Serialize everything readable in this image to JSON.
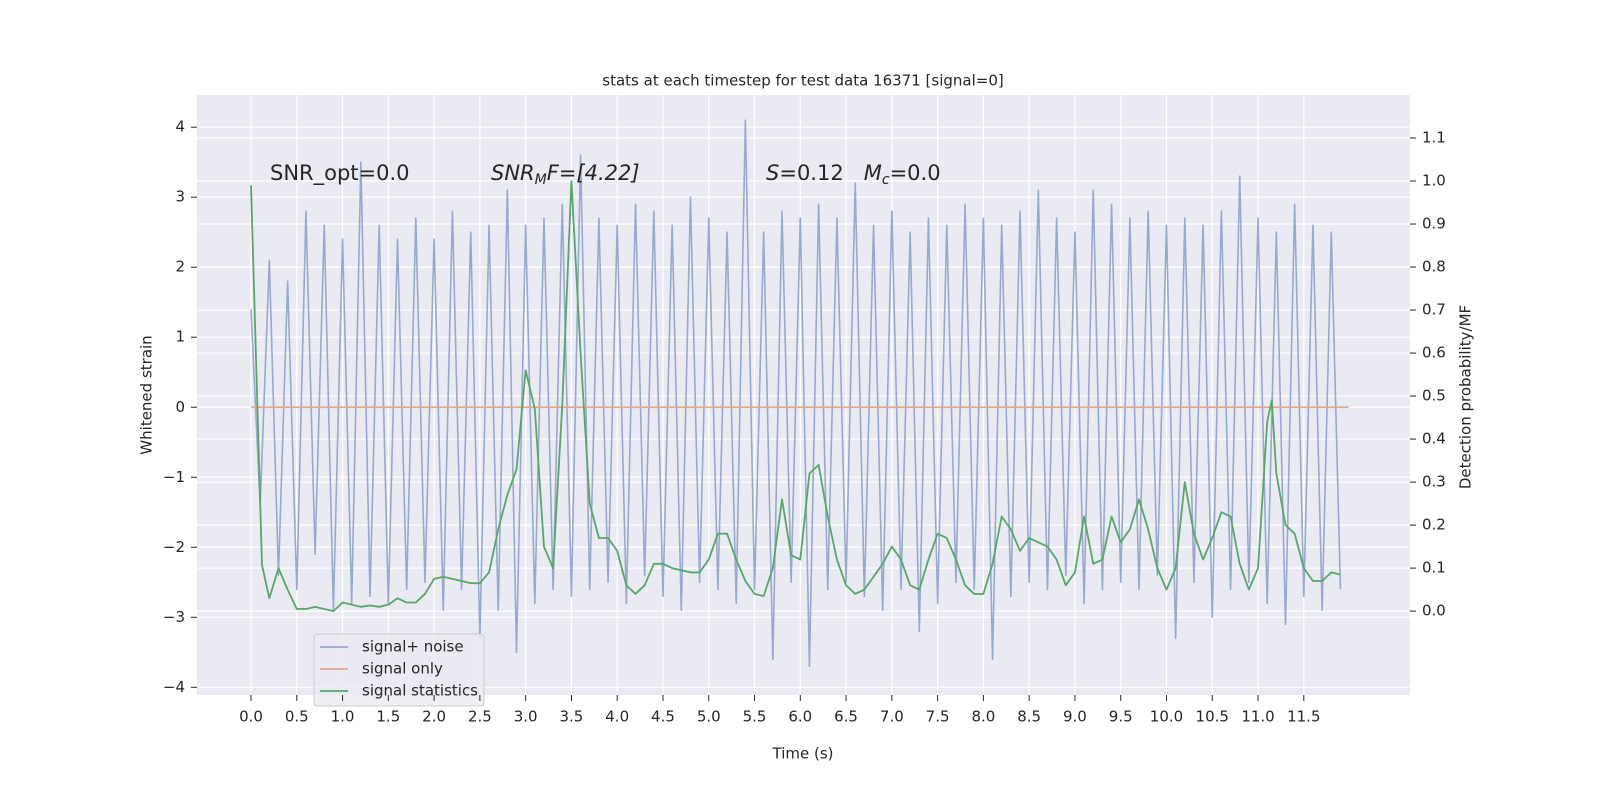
{
  "chart_data": {
    "type": "line",
    "title": "stats at each timestep for test data 16371 [signal=0]",
    "xlabel": "Time (s)",
    "ylabel": "Whitened strain",
    "y2label": "Detection probability/MF",
    "xlim": [
      -0.59,
      12.66
    ],
    "ylim": [
      -4.11,
      4.46
    ],
    "y2lim": [
      -0.195,
      1.2
    ],
    "xticks": [
      {
        "value": 0,
        "label": "0.0"
      },
      0.5,
      {
        "value": 1,
        "label": "1.0"
      },
      1.5,
      {
        "value": 2,
        "label": "2.0"
      },
      2.5,
      {
        "value": 3,
        "label": "3.0"
      },
      3.5,
      {
        "value": 4,
        "label": "4.0"
      },
      4.5,
      {
        "value": 5,
        "label": "5.0"
      },
      5.5,
      {
        "value": 6,
        "label": "6.0"
      },
      6.5,
      {
        "value": 7,
        "label": "7.0"
      },
      7.5,
      {
        "value": 8,
        "label": "8.0"
      },
      8.5,
      {
        "value": 9,
        "label": "9.0"
      },
      9.5,
      {
        "value": 10,
        "label": "10.0"
      },
      10.5,
      {
        "value": 11,
        "label": "11.0"
      },
      11.5
    ],
    "yticks": [
      {
        "value": -4,
        "label": "−4"
      },
      {
        "value": -3,
        "label": "−3"
      },
      {
        "value": -2,
        "label": "−2"
      },
      {
        "value": -1,
        "label": "−1"
      },
      0,
      1,
      2,
      3,
      4
    ],
    "y2ticks": [
      {
        "value": 0,
        "label": "0.0"
      },
      0.1,
      0.2,
      0.3,
      0.4,
      0.5,
      0.6,
      0.7,
      0.8,
      0.9,
      {
        "value": 1,
        "label": "1.0"
      },
      1.1
    ],
    "grid": true,
    "legend": "lower left",
    "annotations": [
      {
        "parts": [
          "SNR_opt=0.0"
        ]
      },
      {
        "parts": [
          "SNR",
          "M",
          "F=[4.22]"
        ]
      },
      {
        "parts": [
          "S",
          "=0.12   ",
          "M",
          "c",
          "=0.0"
        ]
      }
    ],
    "series": [
      {
        "name": "signal+ noise",
        "color": "#98a8cf",
        "x": [
          0.0,
          0.1,
          0.2,
          0.3,
          0.4,
          0.5,
          0.6,
          0.7,
          0.8,
          0.9,
          1.0,
          1.1,
          1.2,
          1.3,
          1.4,
          1.5,
          1.6,
          1.7,
          1.8,
          1.9,
          2.0,
          2.1,
          2.2,
          2.3,
          2.4,
          2.5,
          2.6,
          2.7,
          2.8,
          2.9,
          3.0,
          3.1,
          3.2,
          3.3,
          3.4,
          3.5,
          3.6,
          3.7,
          3.8,
          3.9,
          4.0,
          4.1,
          4.2,
          4.3,
          4.4,
          4.5,
          4.6,
          4.7,
          4.8,
          4.9,
          5.0,
          5.1,
          5.2,
          5.3,
          5.4,
          5.5,
          5.6,
          5.7,
          5.8,
          5.9,
          6.0,
          6.1,
          6.2,
          6.3,
          6.4,
          6.5,
          6.6,
          6.7,
          6.8,
          6.9,
          7.0,
          7.1,
          7.2,
          7.3,
          7.4,
          7.5,
          7.6,
          7.7,
          7.8,
          7.9,
          8.0,
          8.1,
          8.2,
          8.3,
          8.4,
          8.5,
          8.6,
          8.7,
          8.8,
          8.9,
          9.0,
          9.1,
          9.2,
          9.3,
          9.4,
          9.5,
          9.6,
          9.7,
          9.8,
          9.9,
          10.0,
          10.1,
          10.2,
          10.3,
          10.4,
          10.5,
          10.6,
          10.7,
          10.8,
          10.9,
          11.0,
          11.1,
          11.2,
          11.3,
          11.4,
          11.5,
          11.6,
          11.7,
          11.8,
          11.9
        ],
        "values": [
          1.4,
          -1.4,
          2.1,
          -2.4,
          1.8,
          -2.6,
          2.8,
          -2.1,
          2.6,
          -2.9,
          2.4,
          -2.8,
          3.5,
          -2.7,
          2.6,
          -2.8,
          2.4,
          -2.6,
          2.7,
          -2.5,
          2.4,
          -2.9,
          2.8,
          -2.6,
          2.5,
          -3.3,
          2.6,
          -2.9,
          3.1,
          -3.5,
          2.6,
          -2.8,
          2.7,
          -2.6,
          2.9,
          -2.7,
          3.6,
          -2.6,
          2.7,
          -2.5,
          2.6,
          -2.8,
          2.9,
          -2.4,
          2.8,
          -2.7,
          2.6,
          -2.9,
          3.0,
          -2.5,
          2.7,
          -2.6,
          2.5,
          -2.8,
          4.1,
          -2.6,
          2.5,
          -3.6,
          2.8,
          -2.5,
          2.7,
          -3.7,
          2.9,
          -2.6,
          2.7,
          -2.5,
          3.2,
          -2.7,
          2.6,
          -2.9,
          2.8,
          -2.6,
          2.5,
          -3.2,
          2.7,
          -2.8,
          2.6,
          -2.5,
          2.9,
          -2.6,
          2.7,
          -3.6,
          2.6,
          -2.7,
          2.8,
          -2.5,
          3.1,
          -2.6,
          2.7,
          -2.4,
          2.5,
          -2.8,
          3.1,
          -2.6,
          2.9,
          -2.5,
          2.7,
          -2.6,
          2.8,
          -2.4,
          2.6,
          -3.3,
          2.7,
          -2.5,
          2.6,
          -3.0,
          2.8,
          -2.6,
          3.3,
          -2.5,
          2.7,
          -2.8,
          2.5,
          -3.1,
          2.9,
          -2.7,
          2.6,
          -2.9,
          2.5,
          -2.6
        ]
      },
      {
        "name": "signal only",
        "color": "#e6a98a",
        "x": [
          0.0,
          11.99
        ],
        "values": [
          0,
          0
        ]
      },
      {
        "name": "signal statistics",
        "color": "#55a868",
        "axis": "y2",
        "x": [
          0,
          0.12,
          0.2,
          0.3,
          0.4,
          0.5,
          0.6,
          0.7,
          0.8,
          0.9,
          1.0,
          1.1,
          1.2,
          1.3,
          1.4,
          1.5,
          1.6,
          1.7,
          1.8,
          1.9,
          2.0,
          2.1,
          2.2,
          2.3,
          2.4,
          2.5,
          2.6,
          2.7,
          2.8,
          2.9,
          3.0,
          3.1,
          3.2,
          3.3,
          3.4,
          3.5,
          3.6,
          3.7,
          3.8,
          3.9,
          4.0,
          4.1,
          4.2,
          4.3,
          4.4,
          4.5,
          4.6,
          4.7,
          4.8,
          4.9,
          5.0,
          5.1,
          5.2,
          5.3,
          5.4,
          5.5,
          5.6,
          5.7,
          5.8,
          5.9,
          6.0,
          6.1,
          6.2,
          6.3,
          6.4,
          6.5,
          6.6,
          6.7,
          6.8,
          6.9,
          7.0,
          7.1,
          7.2,
          7.3,
          7.4,
          7.5,
          7.6,
          7.7,
          7.8,
          7.9,
          8.0,
          8.1,
          8.2,
          8.3,
          8.4,
          8.5,
          8.6,
          8.7,
          8.8,
          8.9,
          9.0,
          9.1,
          9.2,
          9.3,
          9.4,
          9.5,
          9.6,
          9.7,
          9.8,
          9.9,
          10.0,
          10.1,
          10.2,
          10.3,
          10.4,
          10.5,
          10.6,
          10.7,
          10.8,
          10.9,
          11.0,
          11.1,
          11.15,
          11.2,
          11.3,
          11.4,
          11.5,
          11.6,
          11.7,
          11.8,
          11.9
        ],
        "values": [
          0.99,
          0.107,
          0.03,
          0.1,
          0.05,
          0.005,
          0.005,
          0.01,
          0.005,
          0.0,
          0.02,
          0.015,
          0.01,
          0.013,
          0.01,
          0.015,
          0.03,
          0.02,
          0.02,
          0.04,
          0.075,
          0.08,
          0.075,
          0.07,
          0.065,
          0.065,
          0.09,
          0.19,
          0.27,
          0.33,
          0.56,
          0.47,
          0.15,
          0.1,
          0.48,
          1.0,
          0.6,
          0.25,
          0.17,
          0.17,
          0.14,
          0.06,
          0.04,
          0.06,
          0.11,
          0.11,
          0.1,
          0.095,
          0.09,
          0.09,
          0.12,
          0.18,
          0.18,
          0.12,
          0.07,
          0.04,
          0.035,
          0.1,
          0.26,
          0.13,
          0.12,
          0.32,
          0.34,
          0.22,
          0.12,
          0.06,
          0.04,
          0.05,
          0.08,
          0.11,
          0.15,
          0.12,
          0.06,
          0.05,
          0.12,
          0.18,
          0.17,
          0.12,
          0.06,
          0.04,
          0.04,
          0.11,
          0.22,
          0.19,
          0.14,
          0.17,
          0.16,
          0.15,
          0.12,
          0.06,
          0.09,
          0.22,
          0.11,
          0.12,
          0.22,
          0.16,
          0.19,
          0.26,
          0.19,
          0.1,
          0.05,
          0.1,
          0.3,
          0.18,
          0.12,
          0.17,
          0.23,
          0.22,
          0.11,
          0.05,
          0.1,
          0.44,
          0.49,
          0.32,
          0.2,
          0.18,
          0.1,
          0.07,
          0.07,
          0.09,
          0.085
        ]
      }
    ]
  }
}
